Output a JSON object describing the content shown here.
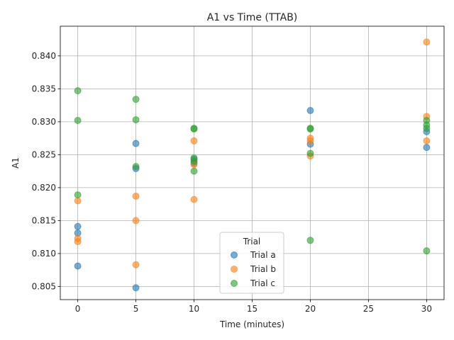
{
  "chart_data": {
    "type": "scatter",
    "title": "A1 vs Time (TTAB)",
    "xlabel": "Time (minutes)",
    "ylabel": "A1",
    "xlim": [
      -1.5,
      31.5
    ],
    "ylim": [
      0.803,
      0.8445
    ],
    "xticks": [
      0,
      5,
      10,
      15,
      20,
      25,
      30
    ],
    "yticks": [
      0.805,
      0.81,
      0.815,
      0.82,
      0.825,
      0.83,
      0.835,
      0.84
    ],
    "grid": true,
    "legend": {
      "title": "Trial",
      "placement": "lower-center"
    },
    "series": [
      {
        "name": "Trial a",
        "color": "#1f77b4",
        "points": [
          [
            0,
            0.8141
          ],
          [
            0,
            0.8131
          ],
          [
            0,
            0.8081
          ],
          [
            5,
            0.8267
          ],
          [
            5,
            0.8229
          ],
          [
            5,
            0.8048
          ],
          [
            10,
            0.8243
          ],
          [
            10,
            0.8237
          ],
          [
            20,
            0.8317
          ],
          [
            20,
            0.8266
          ],
          [
            30,
            0.8285
          ],
          [
            30,
            0.8261
          ]
        ]
      },
      {
        "name": "Trial b",
        "color": "#ff7f0e",
        "points": [
          [
            0,
            0.818
          ],
          [
            0,
            0.8123
          ],
          [
            0,
            0.8118
          ],
          [
            5,
            0.8187
          ],
          [
            5,
            0.815
          ],
          [
            5,
            0.8083
          ],
          [
            10,
            0.8271
          ],
          [
            10,
            0.8235
          ],
          [
            10,
            0.8182
          ],
          [
            20,
            0.8275
          ],
          [
            20,
            0.8271
          ],
          [
            20,
            0.8248
          ],
          [
            30,
            0.8421
          ],
          [
            30,
            0.8308
          ],
          [
            30,
            0.8271
          ]
        ]
      },
      {
        "name": "Trial c",
        "color": "#2ca02c",
        "points": [
          [
            0,
            0.8347
          ],
          [
            0,
            0.8302
          ],
          [
            0,
            0.8189
          ],
          [
            5,
            0.8334
          ],
          [
            5,
            0.8303
          ],
          [
            5,
            0.8232
          ],
          [
            10,
            0.829
          ],
          [
            10,
            0.8289
          ],
          [
            10,
            0.8245
          ],
          [
            10,
            0.824
          ],
          [
            10,
            0.8225
          ],
          [
            20,
            0.829
          ],
          [
            20,
            0.8289
          ],
          [
            20,
            0.8252
          ],
          [
            20,
            0.812
          ],
          [
            30,
            0.8302
          ],
          [
            30,
            0.8295
          ],
          [
            30,
            0.829
          ],
          [
            30,
            0.8104
          ]
        ]
      }
    ]
  }
}
